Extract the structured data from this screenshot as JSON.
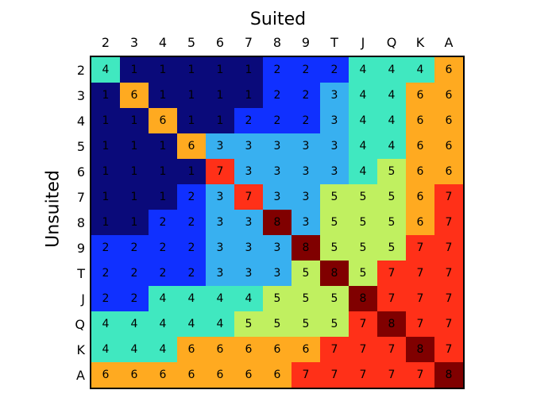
{
  "chart": {
    "type": "heatmap",
    "title_top": "Suited",
    "title_left": "Unsuited",
    "title_fontsize": 22,
    "cell_fontsize": 14,
    "label_fontsize": 16,
    "labels": [
      "2",
      "3",
      "4",
      "5",
      "6",
      "7",
      "8",
      "9",
      "T",
      "J",
      "Q",
      "K",
      "A"
    ],
    "values": [
      [
        4,
        1,
        1,
        1,
        1,
        1,
        2,
        2,
        2,
        4,
        4,
        4,
        6
      ],
      [
        1,
        6,
        1,
        1,
        1,
        1,
        2,
        2,
        3,
        4,
        4,
        6,
        6
      ],
      [
        1,
        1,
        6,
        1,
        1,
        2,
        2,
        2,
        3,
        4,
        4,
        6,
        6
      ],
      [
        1,
        1,
        1,
        6,
        3,
        3,
        3,
        3,
        3,
        4,
        4,
        6,
        6
      ],
      [
        1,
        1,
        1,
        1,
        7,
        3,
        3,
        3,
        3,
        4,
        5,
        6,
        6
      ],
      [
        1,
        1,
        1,
        2,
        3,
        7,
        3,
        3,
        5,
        5,
        5,
        6,
        7
      ],
      [
        1,
        1,
        2,
        2,
        3,
        3,
        8,
        3,
        5,
        5,
        5,
        6,
        7
      ],
      [
        2,
        2,
        2,
        2,
        3,
        3,
        3,
        8,
        5,
        5,
        5,
        7,
        7
      ],
      [
        2,
        2,
        2,
        2,
        3,
        3,
        3,
        5,
        8,
        5,
        7,
        7,
        7
      ],
      [
        2,
        2,
        4,
        4,
        4,
        4,
        5,
        5,
        5,
        8,
        7,
        7,
        7
      ],
      [
        4,
        4,
        4,
        4,
        4,
        5,
        5,
        5,
        5,
        7,
        8,
        7,
        7
      ],
      [
        4,
        4,
        4,
        6,
        6,
        6,
        6,
        6,
        7,
        7,
        7,
        8,
        7
      ],
      [
        6,
        6,
        6,
        6,
        6,
        6,
        6,
        7,
        7,
        7,
        7,
        7,
        8
      ]
    ],
    "color_map": {
      "1": "#0a0a7a",
      "2": "#1030ff",
      "3": "#38b0f0",
      "4": "#40e8c0",
      "5": "#c0f060",
      "6": "#ffaa20",
      "7": "#ff3018",
      "8": "#800000"
    },
    "background_color": "#ffffff",
    "value_text_color": "#000000"
  }
}
